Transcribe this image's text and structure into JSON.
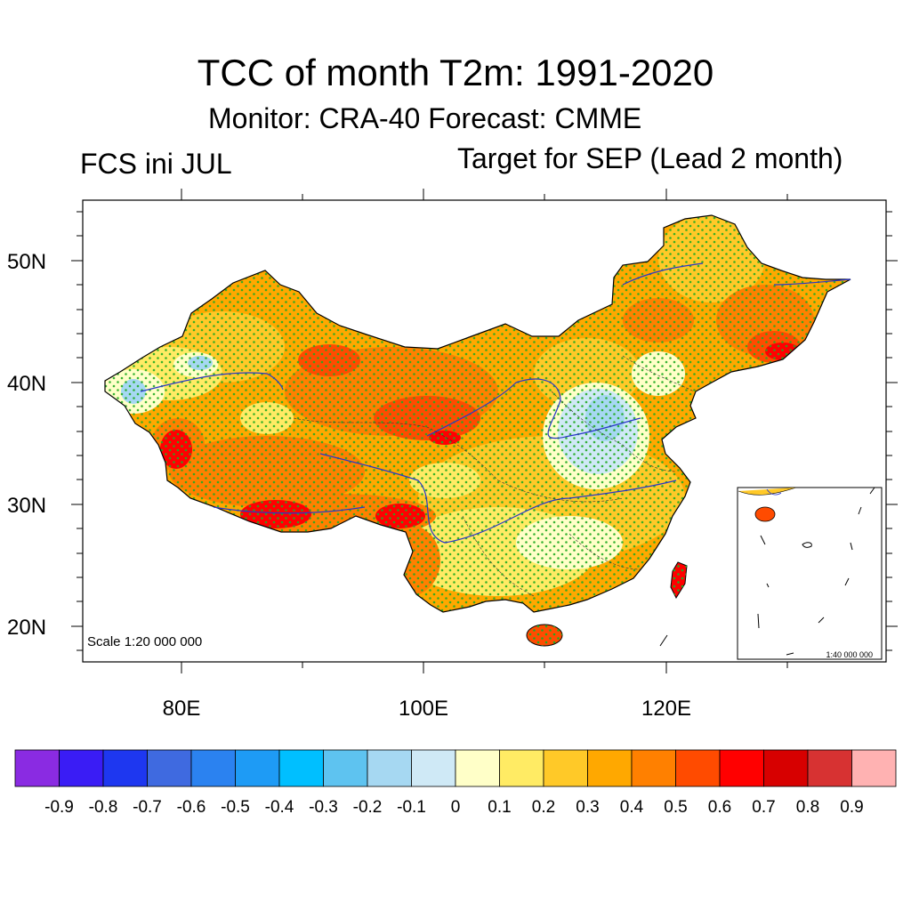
{
  "title": "TCC of month T2m: 1991-2020",
  "subtitle": "Monitor: CRA-40   Forecast: CMME",
  "left_label": "FCS ini JUL",
  "right_label": "Target for SEP (Lead 2 month)",
  "map": {
    "region": "China",
    "lat_range": [
      17,
      55
    ],
    "lon_range": [
      72,
      136
    ],
    "y_ticks": [
      "50N",
      "40N",
      "30N",
      "20N"
    ],
    "x_ticks": [
      "80E",
      "100E",
      "120E"
    ],
    "scale_main": "Scale 1:20 000 000",
    "scale_inset": "1:40 000 000",
    "stipple_color": "#22aa22"
  },
  "colorbar": {
    "labels": [
      "-0.9",
      "-0.8",
      "-0.7",
      "-0.6",
      "-0.5",
      "-0.4",
      "-0.3",
      "-0.2",
      "-0.1",
      "0",
      "0.1",
      "0.2",
      "0.3",
      "0.4",
      "0.5",
      "0.6",
      "0.7",
      "0.8",
      "0.9"
    ],
    "colors": [
      "#8a2be2",
      "#3a1cf5",
      "#1e37f0",
      "#3f6ae0",
      "#2b82f0",
      "#1e9bf5",
      "#00bfff",
      "#5ec3f0",
      "#a6d8f2",
      "#cfe9f6",
      "#ffffc8",
      "#ffeb64",
      "#ffc928",
      "#ffa800",
      "#ff8000",
      "#ff4b00",
      "#ff0000",
      "#d70000",
      "#d73232",
      "#ffb2b2"
    ]
  }
}
